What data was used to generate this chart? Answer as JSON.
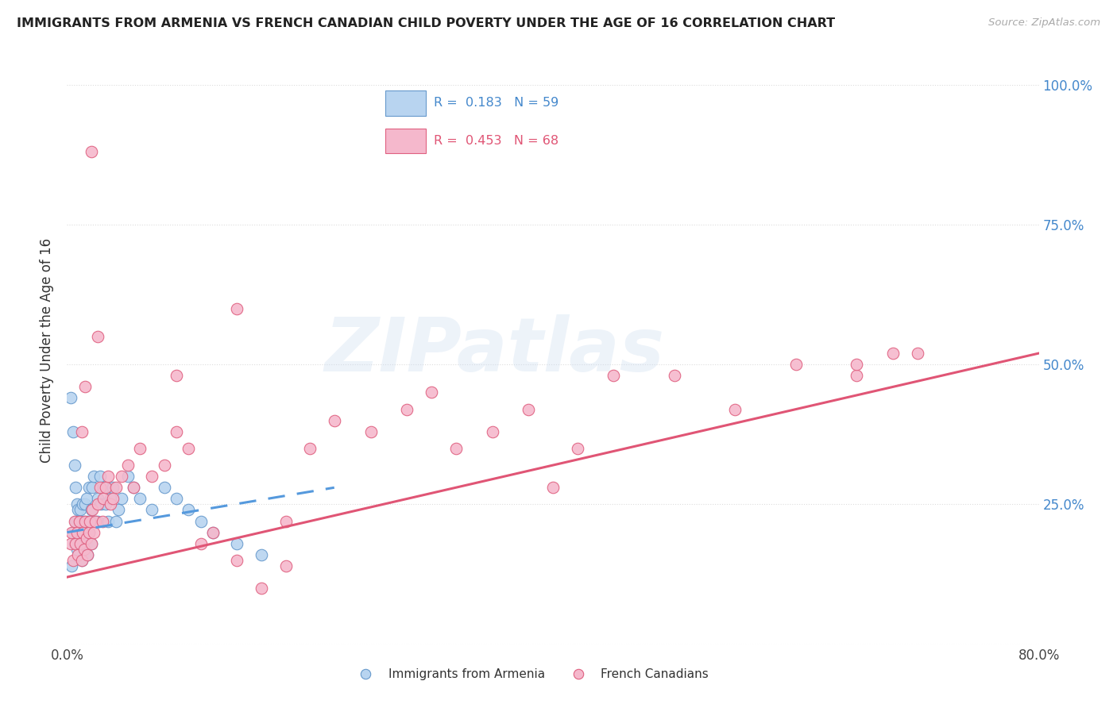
{
  "title": "IMMIGRANTS FROM ARMENIA VS FRENCH CANADIAN CHILD POVERTY UNDER THE AGE OF 16 CORRELATION CHART",
  "source": "Source: ZipAtlas.com",
  "ylabel": "Child Poverty Under the Age of 16",
  "xlim": [
    0.0,
    0.8
  ],
  "ylim": [
    0.0,
    1.05
  ],
  "ytick_positions": [
    0.0,
    0.25,
    0.5,
    0.75,
    1.0
  ],
  "ytick_labels_right": [
    "",
    "25.0%",
    "50.0%",
    "75.0%",
    "100.0%"
  ],
  "watermark_text": "ZIPatlas",
  "scatter1_color": "#b8d4f0",
  "scatter1_edge": "#6699cc",
  "scatter2_color": "#f5b8cc",
  "scatter2_edge": "#e06080",
  "line1_color": "#5599dd",
  "line2_color": "#e05575",
  "blue_scatter_x": [
    0.003,
    0.004,
    0.005,
    0.005,
    0.006,
    0.006,
    0.007,
    0.007,
    0.008,
    0.008,
    0.009,
    0.009,
    0.01,
    0.01,
    0.011,
    0.011,
    0.012,
    0.012,
    0.013,
    0.013,
    0.014,
    0.014,
    0.015,
    0.015,
    0.016,
    0.016,
    0.017,
    0.017,
    0.018,
    0.018,
    0.019,
    0.02,
    0.02,
    0.021,
    0.022,
    0.023,
    0.025,
    0.025,
    0.027,
    0.028,
    0.03,
    0.032,
    0.034,
    0.036,
    0.038,
    0.04,
    0.042,
    0.045,
    0.05,
    0.055,
    0.06,
    0.07,
    0.08,
    0.09,
    0.1,
    0.11,
    0.12,
    0.14,
    0.16
  ],
  "blue_scatter_y": [
    0.44,
    0.14,
    0.2,
    0.38,
    0.32,
    0.18,
    0.28,
    0.22,
    0.25,
    0.17,
    0.24,
    0.2,
    0.22,
    0.18,
    0.24,
    0.19,
    0.22,
    0.15,
    0.2,
    0.25,
    0.22,
    0.18,
    0.25,
    0.2,
    0.26,
    0.18,
    0.22,
    0.16,
    0.2,
    0.28,
    0.22,
    0.24,
    0.18,
    0.28,
    0.3,
    0.22,
    0.26,
    0.22,
    0.3,
    0.25,
    0.28,
    0.25,
    0.22,
    0.26,
    0.28,
    0.22,
    0.24,
    0.26,
    0.3,
    0.28,
    0.26,
    0.24,
    0.28,
    0.26,
    0.24,
    0.22,
    0.2,
    0.18,
    0.16
  ],
  "pink_scatter_x": [
    0.003,
    0.004,
    0.005,
    0.006,
    0.007,
    0.008,
    0.009,
    0.01,
    0.011,
    0.012,
    0.013,
    0.014,
    0.015,
    0.016,
    0.017,
    0.018,
    0.019,
    0.02,
    0.021,
    0.022,
    0.023,
    0.025,
    0.027,
    0.029,
    0.03,
    0.032,
    0.034,
    0.036,
    0.038,
    0.04,
    0.045,
    0.05,
    0.055,
    0.06,
    0.07,
    0.08,
    0.09,
    0.1,
    0.11,
    0.12,
    0.14,
    0.16,
    0.18,
    0.2,
    0.22,
    0.25,
    0.28,
    0.3,
    0.32,
    0.35,
    0.38,
    0.4,
    0.42,
    0.45,
    0.5,
    0.55,
    0.6,
    0.65,
    0.7,
    0.02,
    0.025,
    0.015,
    0.012,
    0.09,
    0.14,
    0.18,
    0.65,
    0.68
  ],
  "pink_scatter_y": [
    0.18,
    0.2,
    0.15,
    0.22,
    0.18,
    0.2,
    0.16,
    0.22,
    0.18,
    0.15,
    0.2,
    0.17,
    0.22,
    0.19,
    0.16,
    0.2,
    0.22,
    0.18,
    0.24,
    0.2,
    0.22,
    0.25,
    0.28,
    0.22,
    0.26,
    0.28,
    0.3,
    0.25,
    0.26,
    0.28,
    0.3,
    0.32,
    0.28,
    0.35,
    0.3,
    0.32,
    0.38,
    0.35,
    0.18,
    0.2,
    0.15,
    0.1,
    0.22,
    0.35,
    0.4,
    0.38,
    0.42,
    0.45,
    0.35,
    0.38,
    0.42,
    0.28,
    0.35,
    0.48,
    0.48,
    0.42,
    0.5,
    0.48,
    0.52,
    0.88,
    0.55,
    0.46,
    0.38,
    0.48,
    0.6,
    0.14,
    0.5,
    0.52
  ],
  "line1_x0": 0.0,
  "line1_x1": 0.22,
  "line1_y0": 0.2,
  "line1_y1": 0.28,
  "line2_x0": 0.0,
  "line2_x1": 0.8,
  "line2_y0": 0.12,
  "line2_y1": 0.52
}
